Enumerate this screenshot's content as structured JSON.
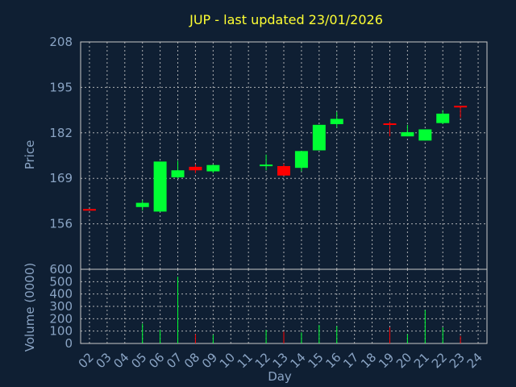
{
  "chart_data": {
    "type": "candlestick",
    "title": "JUP - last updated 23/01/2026",
    "xlabel": "Day",
    "ylabel_price": "Price",
    "ylabel_volume": "Volume (0000)",
    "x_ticks": [
      "02",
      "03",
      "04",
      "05",
      "06",
      "07",
      "08",
      "09",
      "10",
      "11",
      "12",
      "13",
      "14",
      "15",
      "16",
      "17",
      "18",
      "19",
      "20",
      "21",
      "22",
      "23",
      "24"
    ],
    "price_ticks": [
      208,
      195,
      182,
      169,
      156
    ],
    "price_range": [
      143,
      208
    ],
    "volume_ticks": [
      600,
      500,
      400,
      300,
      200,
      100,
      0
    ],
    "volume_range": [
      0,
      600
    ],
    "grid": true,
    "colors": {
      "up": "#00ff33",
      "down": "#ff0000",
      "neutral": "#ff0000",
      "background": "#0f1f33",
      "title": "#ffff33",
      "axis_text": "#8aa4c4"
    },
    "candles": [
      {
        "day": "02",
        "open": 160,
        "close": 160,
        "high": 160,
        "low": 160,
        "volume": 0
      },
      {
        "day": "05",
        "open": 160.8,
        "close": 162.0,
        "high": 162.8,
        "low": 159.8,
        "volume": 160
      },
      {
        "day": "06",
        "open": 159.5,
        "close": 173.8,
        "high": 173.8,
        "low": 159.5,
        "volume": 110
      },
      {
        "day": "07",
        "open": 169.3,
        "close": 171.3,
        "high": 174.0,
        "low": 169.0,
        "volume": 540
      },
      {
        "day": "08",
        "open": 172.3,
        "close": 171.3,
        "high": 173.0,
        "low": 170.5,
        "volume": 75
      },
      {
        "day": "09",
        "open": 171.0,
        "close": 172.8,
        "high": 173.0,
        "low": 170.5,
        "volume": 70
      },
      {
        "day": "12",
        "open": 172.5,
        "close": 172.7,
        "high": 175.8,
        "low": 171.3,
        "volume": 110
      },
      {
        "day": "13",
        "open": 172.5,
        "close": 169.8,
        "high": 173.2,
        "low": 169.8,
        "volume": 95
      },
      {
        "day": "14",
        "open": 172.0,
        "close": 176.8,
        "high": 176.8,
        "low": 171.0,
        "volume": 90
      },
      {
        "day": "15",
        "open": 177.0,
        "close": 184.3,
        "high": 184.3,
        "low": 177.0,
        "volume": 150
      },
      {
        "day": "16",
        "open": 184.5,
        "close": 186.0,
        "high": 188.0,
        "low": 183.5,
        "volume": 140
      },
      {
        "day": "19",
        "open": 184.5,
        "close": 184.5,
        "high": 185.2,
        "low": 181.0,
        "volume": 130
      },
      {
        "day": "20",
        "open": 181.0,
        "close": 182.2,
        "high": 184.3,
        "low": 181.0,
        "volume": 75
      },
      {
        "day": "21",
        "open": 179.8,
        "close": 183.0,
        "high": 183.0,
        "low": 179.8,
        "volume": 270
      },
      {
        "day": "22",
        "open": 184.8,
        "close": 187.5,
        "high": 188.5,
        "low": 184.5,
        "volume": 130
      },
      {
        "day": "23",
        "open": 189.5,
        "close": 189.3,
        "high": 189.5,
        "low": 186.3,
        "volume": 60
      }
    ]
  }
}
